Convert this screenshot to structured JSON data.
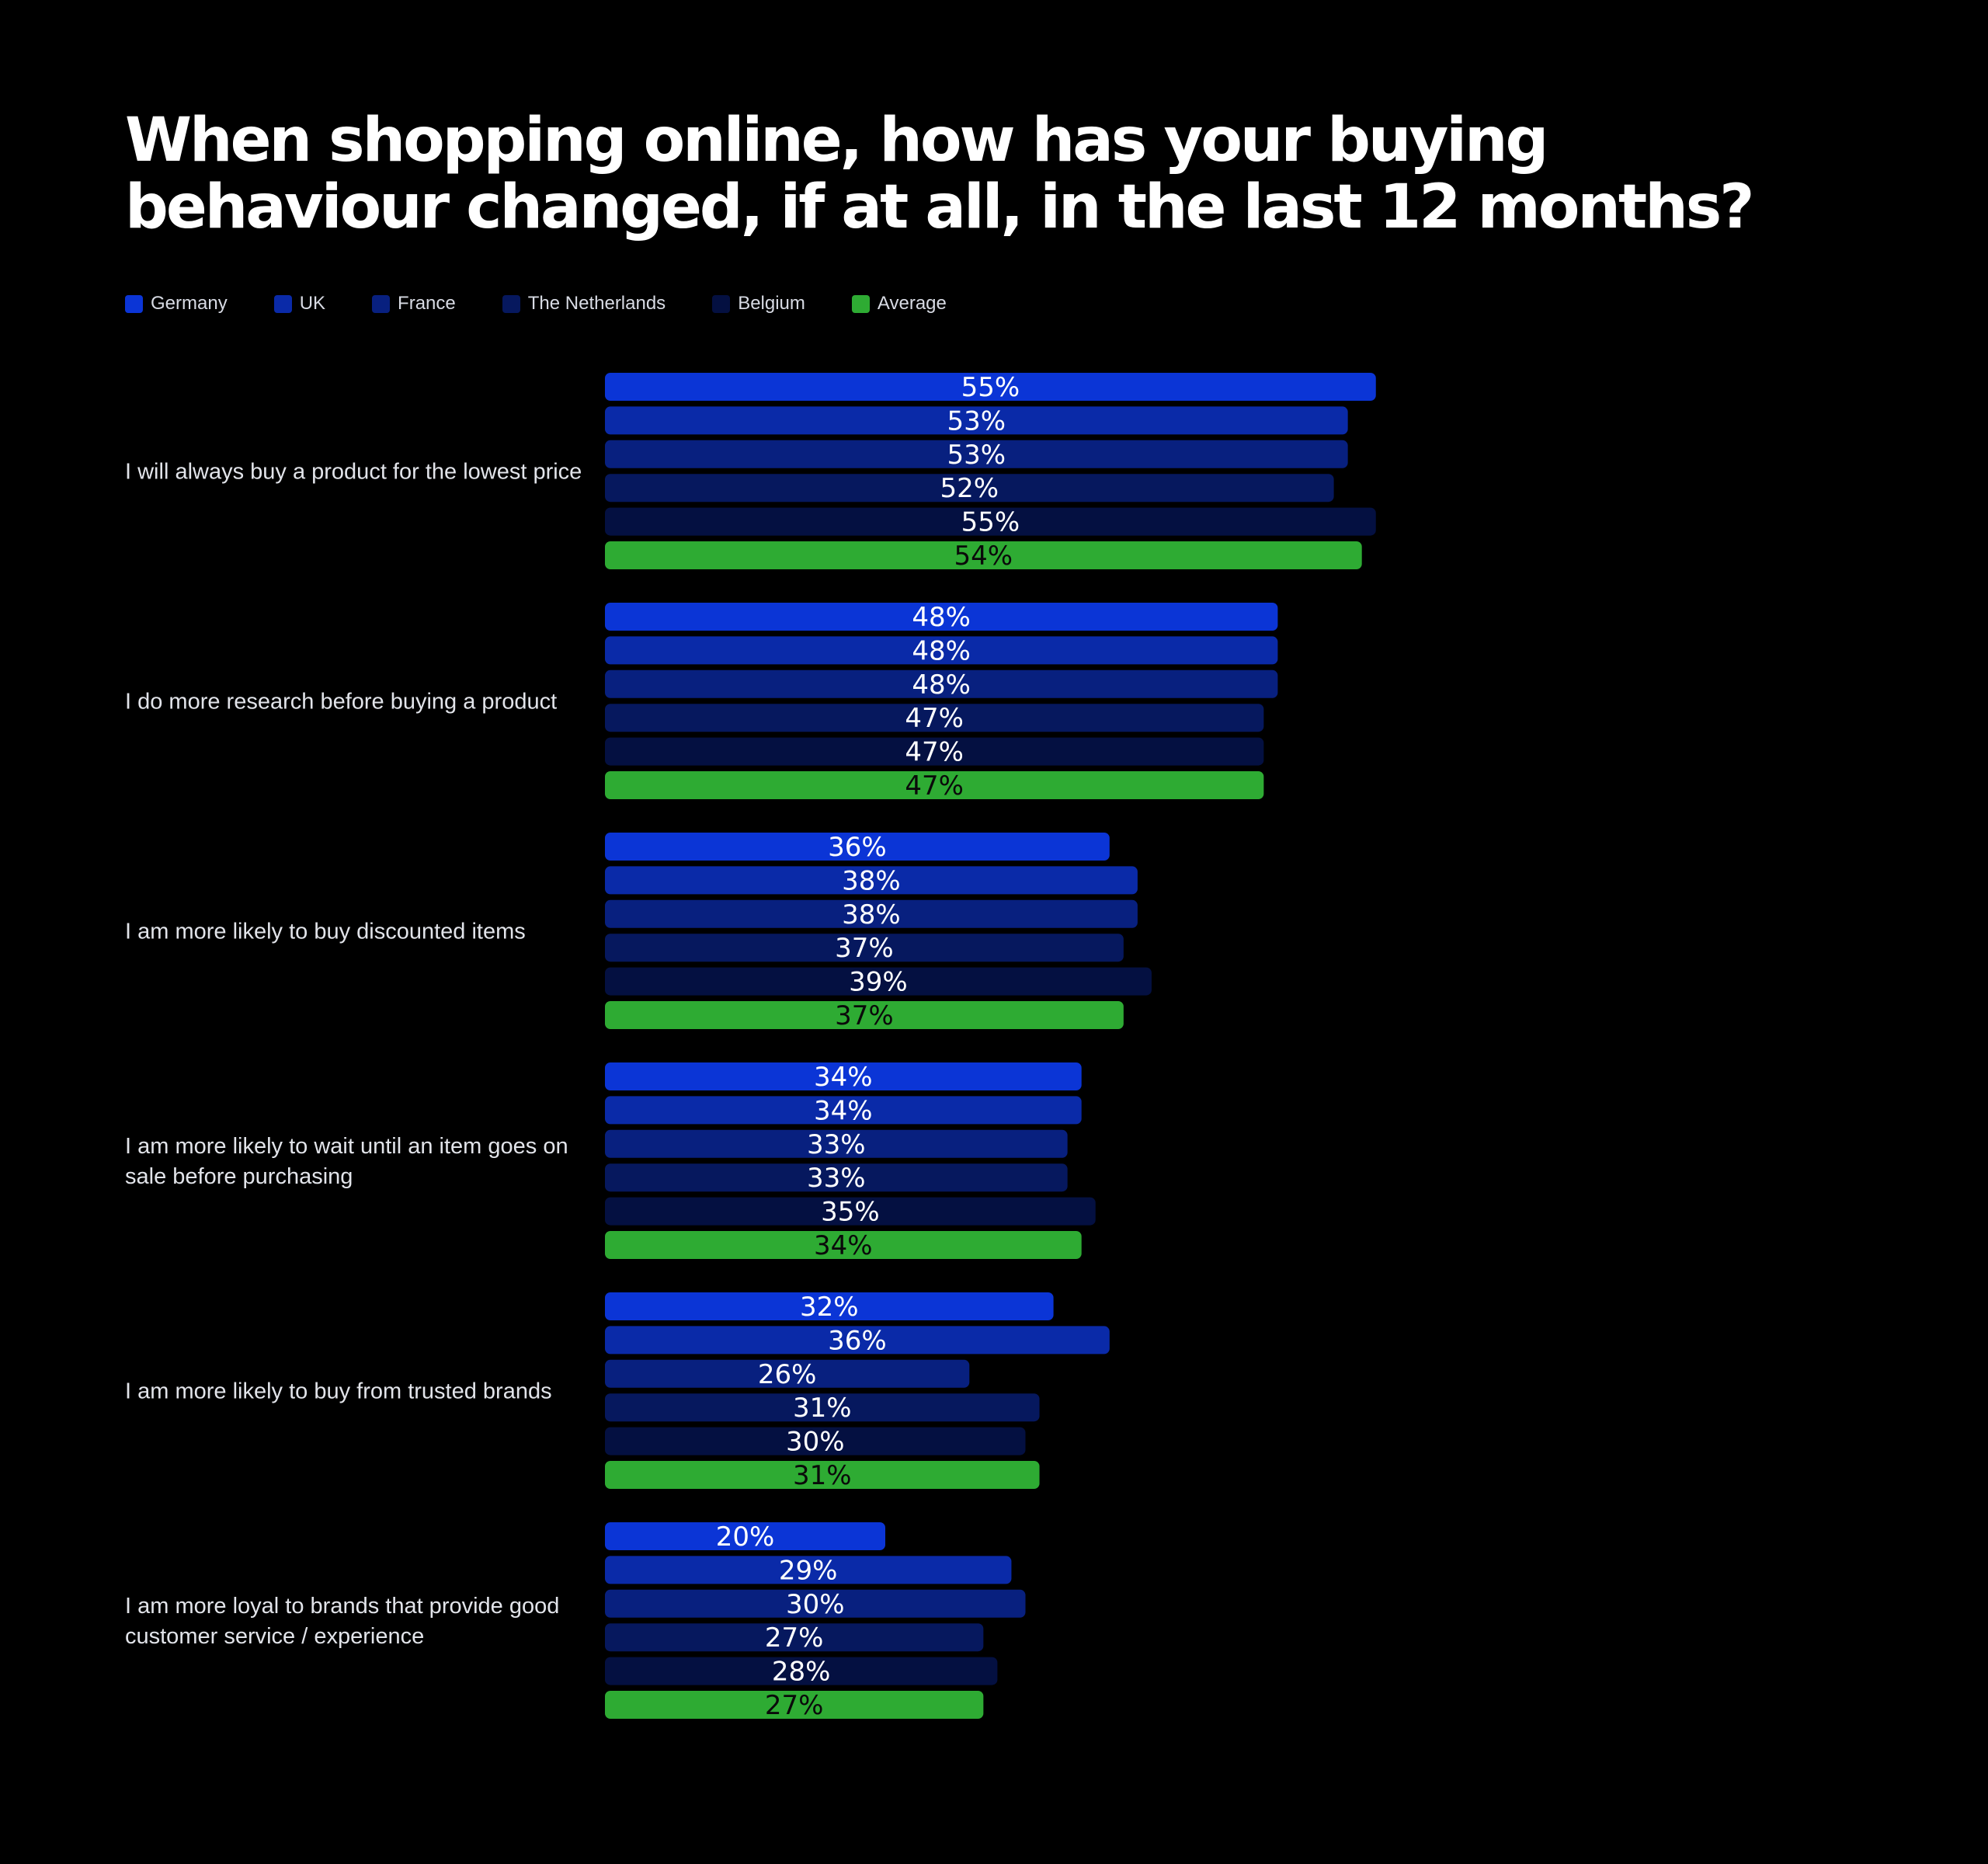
{
  "title": "When shopping online, how has your buying\nbehaviour changed, if at all, in the last 12 months?",
  "legend": [
    {
      "label": "Germany",
      "color": "#0b35d6"
    },
    {
      "label": "UK",
      "color": "#0a2aa8"
    },
    {
      "label": "France",
      "color": "#08207f"
    },
    {
      "label": "The Netherlands",
      "color": "#06185e"
    },
    {
      "label": "Belgium",
      "color": "#041041"
    },
    {
      "label": "Average",
      "color": "#2eab33"
    }
  ],
  "chart_data": {
    "type": "bar",
    "orientation": "horizontal",
    "title": "When shopping online, how has your buying behaviour changed, if at all, in the last 12 months?",
    "value_unit": "%",
    "categories": [
      [
        "I will always buy a product for the lowest price"
      ],
      [
        "I do more research before buying a product"
      ],
      [
        "I am more likely to buy discounted items"
      ],
      [
        "I am more likely to wait until an item goes on",
        "sale before purchasing"
      ],
      [
        "I am more likely to buy from trusted brands"
      ],
      [
        "I am more loyal to brands that provide good",
        "customer service / experience"
      ]
    ],
    "series": [
      {
        "name": "Germany",
        "color": "#0b35d6",
        "values": [
          55,
          48,
          36,
          34,
          32,
          20
        ]
      },
      {
        "name": "UK",
        "color": "#0a2aa8",
        "values": [
          53,
          48,
          38,
          34,
          36,
          29
        ]
      },
      {
        "name": "France",
        "color": "#08207f",
        "values": [
          53,
          48,
          38,
          33,
          26,
          30
        ]
      },
      {
        "name": "The Netherlands",
        "color": "#06185e",
        "values": [
          52,
          47,
          37,
          33,
          31,
          27
        ]
      },
      {
        "name": "Belgium",
        "color": "#041041",
        "values": [
          55,
          47,
          39,
          35,
          30,
          28
        ]
      },
      {
        "name": "Average",
        "color": "#2eab33",
        "values": [
          54,
          47,
          37,
          34,
          31,
          27
        ]
      }
    ],
    "legend_position": "top-left",
    "grid": false
  }
}
